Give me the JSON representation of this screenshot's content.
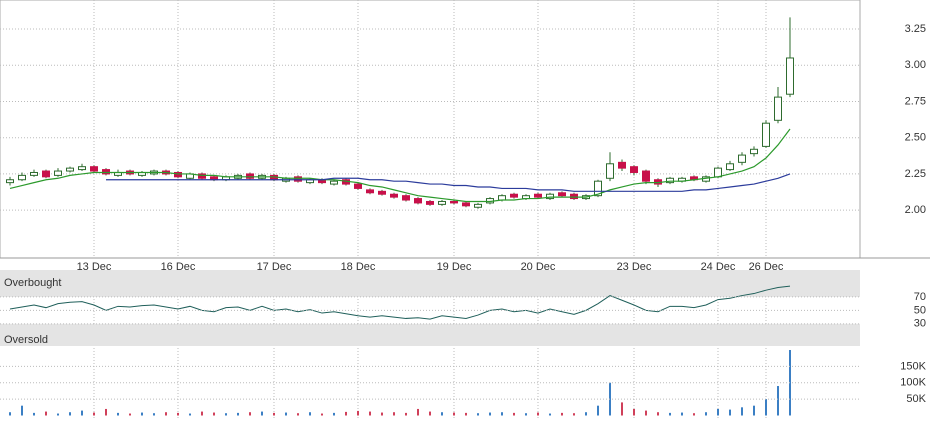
{
  "chart_data": [
    {
      "type": "candlestick",
      "categories": [
        null,
        null,
        null,
        null,
        null,
        null,
        null,
        "13 Dec",
        null,
        null,
        null,
        null,
        null,
        null,
        "16 Dec",
        null,
        null,
        null,
        null,
        null,
        null,
        null,
        "17 Dec",
        null,
        null,
        null,
        null,
        null,
        null,
        "18 Dec",
        null,
        null,
        null,
        null,
        null,
        null,
        null,
        "19 Dec",
        null,
        null,
        null,
        null,
        null,
        null,
        "20 Dec",
        null,
        null,
        null,
        null,
        null,
        null,
        null,
        "23 Dec",
        null,
        null,
        null,
        null,
        null,
        null,
        "24 Dec",
        null,
        null,
        null,
        "26 Dec",
        null,
        null
      ],
      "open": [
        2.19,
        2.21,
        2.24,
        2.27,
        2.24,
        2.27,
        2.28,
        2.3,
        2.28,
        2.24,
        2.27,
        2.24,
        2.25,
        2.27,
        2.26,
        2.22,
        2.25,
        2.23,
        2.21,
        2.22,
        2.25,
        2.22,
        2.24,
        2.2,
        2.23,
        2.19,
        2.21,
        2.18,
        2.21,
        2.18,
        2.14,
        2.13,
        2.11,
        2.1,
        2.08,
        2.06,
        2.04,
        2.06,
        2.05,
        2.02,
        2.05,
        2.07,
        2.11,
        2.08,
        2.11,
        2.08,
        2.12,
        2.11,
        2.08,
        2.1,
        2.22,
        2.33,
        2.3,
        2.27,
        2.21,
        2.19,
        2.2,
        2.23,
        2.2,
        2.23,
        2.28,
        2.33,
        2.39,
        2.44,
        2.62,
        2.8
      ],
      "high": [
        2.23,
        2.26,
        2.28,
        2.28,
        2.29,
        2.3,
        2.32,
        2.31,
        2.29,
        2.28,
        2.28,
        2.27,
        2.28,
        2.28,
        2.27,
        2.26,
        2.26,
        2.24,
        2.24,
        2.25,
        2.26,
        2.25,
        2.25,
        2.23,
        2.24,
        2.22,
        2.22,
        2.21,
        2.22,
        2.19,
        2.15,
        2.14,
        2.12,
        2.11,
        2.09,
        2.07,
        2.07,
        2.07,
        2.06,
        2.05,
        2.09,
        2.11,
        2.12,
        2.11,
        2.12,
        2.12,
        2.13,
        2.12,
        2.11,
        2.21,
        2.4,
        2.35,
        2.31,
        2.28,
        2.22,
        2.23,
        2.23,
        2.24,
        2.24,
        2.3,
        2.34,
        2.4,
        2.44,
        2.62,
        2.85,
        3.33
      ],
      "low": [
        2.17,
        2.2,
        2.23,
        2.22,
        2.23,
        2.26,
        2.27,
        2.26,
        2.24,
        2.23,
        2.24,
        2.23,
        2.24,
        2.24,
        2.22,
        2.21,
        2.21,
        2.2,
        2.2,
        2.21,
        2.21,
        2.21,
        2.2,
        2.19,
        2.19,
        2.18,
        2.18,
        2.17,
        2.17,
        2.14,
        2.11,
        2.1,
        2.08,
        2.06,
        2.04,
        2.03,
        2.03,
        2.04,
        2.02,
        2.01,
        2.04,
        2.06,
        2.08,
        2.07,
        2.08,
        2.07,
        2.09,
        2.07,
        2.07,
        2.09,
        2.2,
        2.27,
        2.24,
        2.18,
        2.16,
        2.18,
        2.19,
        2.2,
        2.19,
        2.22,
        2.27,
        2.31,
        2.37,
        2.43,
        2.6,
        2.78
      ],
      "close": [
        2.21,
        2.24,
        2.26,
        2.23,
        2.27,
        2.29,
        2.3,
        2.27,
        2.25,
        2.26,
        2.25,
        2.26,
        2.27,
        2.25,
        2.23,
        2.25,
        2.22,
        2.21,
        2.23,
        2.24,
        2.22,
        2.24,
        2.21,
        2.22,
        2.2,
        2.21,
        2.19,
        2.2,
        2.18,
        2.15,
        2.12,
        2.11,
        2.09,
        2.07,
        2.05,
        2.04,
        2.06,
        2.05,
        2.03,
        2.04,
        2.08,
        2.1,
        2.09,
        2.1,
        2.09,
        2.11,
        2.1,
        2.08,
        2.1,
        2.2,
        2.32,
        2.29,
        2.26,
        2.2,
        2.18,
        2.22,
        2.22,
        2.21,
        2.23,
        2.29,
        2.32,
        2.38,
        2.42,
        2.6,
        2.78,
        3.05
      ],
      "up_color": "#ffffff",
      "down_color": "#c8104a",
      "wick_color": "#2e6b2e",
      "overlays": [
        {
          "color": "#2c9a2c",
          "values": [
            2.15,
            2.17,
            2.19,
            2.21,
            2.22,
            2.24,
            2.25,
            2.26,
            2.26,
            2.26,
            2.26,
            2.26,
            2.26,
            2.26,
            2.25,
            2.25,
            2.24,
            2.24,
            2.23,
            2.23,
            2.23,
            2.23,
            2.23,
            2.22,
            2.22,
            2.22,
            2.21,
            2.21,
            2.2,
            2.19,
            2.17,
            2.16,
            2.14,
            2.12,
            2.1,
            2.09,
            2.08,
            2.07,
            2.06,
            2.06,
            2.06,
            2.07,
            2.07,
            2.08,
            2.08,
            2.09,
            2.09,
            2.09,
            2.09,
            2.11,
            2.14,
            2.16,
            2.18,
            2.19,
            2.19,
            2.2,
            2.2,
            2.21,
            2.22,
            2.23,
            2.25,
            2.27,
            2.3,
            2.36,
            2.45,
            2.56
          ]
        },
        {
          "color": "#2c3c9c",
          "values": [
            null,
            null,
            null,
            null,
            null,
            null,
            null,
            null,
            2.21,
            2.21,
            2.21,
            2.21,
            2.21,
            2.21,
            2.21,
            2.21,
            2.21,
            2.21,
            2.21,
            2.21,
            2.21,
            2.21,
            2.21,
            2.21,
            2.21,
            2.21,
            2.21,
            2.22,
            2.22,
            2.22,
            2.21,
            2.21,
            2.2,
            2.2,
            2.19,
            2.18,
            2.18,
            2.17,
            2.17,
            2.16,
            2.16,
            2.15,
            2.15,
            2.15,
            2.14,
            2.14,
            2.14,
            2.13,
            2.13,
            2.13,
            2.13,
            2.13,
            2.13,
            2.13,
            2.13,
            2.13,
            2.13,
            2.14,
            2.14,
            2.15,
            2.16,
            2.17,
            2.18,
            2.2,
            2.22,
            2.25
          ]
        }
      ],
      "ylim": [
        1.67,
        3.45
      ],
      "yticks": [
        {
          "value": 2,
          "label": "2.00"
        },
        2.25,
        {
          "value": 2.5,
          "label": "2.50"
        },
        2.75,
        {
          "value": 3,
          "label": "3.00"
        },
        3.25
      ],
      "grid": true
    },
    {
      "type": "line",
      "upper_label": "Overbought",
      "lower_label": "Oversold",
      "color": "#1f5f5a",
      "values": [
        52,
        55,
        58,
        54,
        60,
        62,
        63,
        58,
        50,
        56,
        55,
        57,
        58,
        55,
        52,
        56,
        50,
        48,
        54,
        55,
        50,
        56,
        50,
        52,
        48,
        51,
        46,
        48,
        45,
        42,
        40,
        42,
        40,
        38,
        39,
        37,
        42,
        40,
        38,
        43,
        50,
        52,
        48,
        50,
        46,
        52,
        48,
        44,
        50,
        60,
        72,
        65,
        58,
        50,
        48,
        56,
        56,
        54,
        58,
        66,
        68,
        72,
        75,
        80,
        84,
        86
      ],
      "ylim": [
        0,
        110
      ],
      "yticks": [
        30,
        50,
        70
      ],
      "grid": true
    },
    {
      "type": "bar",
      "values": [
        10000,
        30000,
        8000,
        12000,
        6000,
        10000,
        15000,
        9000,
        20000,
        8000,
        6000,
        9000,
        7000,
        10000,
        8000,
        6000,
        12000,
        9000,
        7000,
        8000,
        10000,
        12000,
        8000,
        9000,
        7000,
        10000,
        6000,
        8000,
        11000,
        14000,
        12000,
        9000,
        10000,
        8000,
        20000,
        12000,
        10000,
        9000,
        8000,
        7000,
        9000,
        10000,
        8000,
        7000,
        9000,
        6000,
        8000,
        7000,
        10000,
        30000,
        100000,
        40000,
        20000,
        15000,
        10000,
        8000,
        9000,
        7000,
        10000,
        20000,
        18000,
        25000,
        30000,
        50000,
        90000,
        200000
      ],
      "up_color": "#3b7fc4",
      "down_color": "#d0405a",
      "ylim": [
        0,
        200000
      ],
      "yticks": [
        {
          "value": 50000,
          "label": "50K"
        },
        {
          "value": 100000,
          "label": "100K"
        },
        {
          "value": 150000,
          "label": "150K"
        }
      ],
      "grid": true
    }
  ]
}
